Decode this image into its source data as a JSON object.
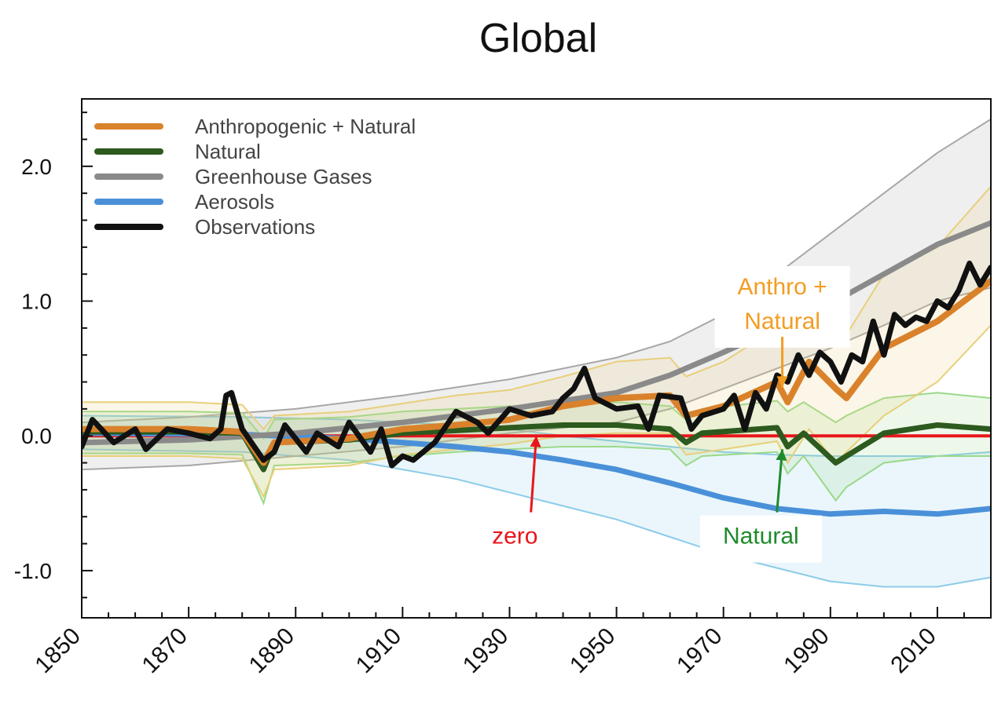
{
  "colors": {
    "anthro_natural": "#d9822b",
    "anthro_natural_band": "#e8cf7a",
    "natural": "#2d5a1e",
    "natural_band": "#9bd98a",
    "ghg": "#8a8a8a",
    "ghg_band": "#a7a7a7",
    "aerosols": "#4a90d9",
    "aerosols_band": "#8ccbe8",
    "observations": "#111111",
    "zero_line": "#e8161b",
    "annotation_anthro": "#f39c22",
    "annotation_natural": "#1f8a2b",
    "annotation_zero": "#e8161b"
  },
  "chart_data": {
    "type": "line",
    "title": "Global",
    "xlabel": "",
    "ylabel": "",
    "xlim": [
      1850,
      2020
    ],
    "ylim": [
      -1.35,
      2.5
    ],
    "x_ticks": [
      1850,
      1870,
      1890,
      1910,
      1930,
      1950,
      1970,
      1990,
      2010
    ],
    "y_ticks": [
      2.0,
      1.0,
      0.0,
      -1.0
    ],
    "y_tick_labels": [
      "2.0",
      "1.0",
      "0.0",
      "-1.0"
    ],
    "grid": false,
    "legend_position": "top-left",
    "series": [
      {
        "name": "Anthropogenic + Natural",
        "color_key": "anthro_natural",
        "x": [
          1850,
          1870,
          1880,
          1884,
          1886,
          1900,
          1910,
          1920,
          1930,
          1940,
          1950,
          1960,
          1963,
          1970,
          1980,
          1982,
          1986,
          1991,
          1993,
          2000,
          2010,
          2020
        ],
        "y": [
          0.05,
          0.05,
          0.03,
          -0.2,
          -0.05,
          -0.02,
          0.05,
          0.08,
          0.12,
          0.22,
          0.28,
          0.3,
          0.15,
          0.22,
          0.4,
          0.25,
          0.55,
          0.35,
          0.28,
          0.65,
          0.85,
          1.15
        ],
        "band_low": [
          -0.15,
          -0.15,
          -0.17,
          -0.45,
          -0.25,
          -0.22,
          -0.14,
          -0.1,
          -0.06,
          0.0,
          0.02,
          0.02,
          -0.14,
          -0.1,
          -0.04,
          -0.2,
          0.05,
          -0.2,
          -0.12,
          0.15,
          0.4,
          0.82
        ],
        "band_high": [
          0.25,
          0.25,
          0.23,
          0.05,
          0.15,
          0.18,
          0.24,
          0.3,
          0.34,
          0.44,
          0.55,
          0.58,
          0.44,
          0.55,
          0.8,
          0.68,
          1.0,
          0.85,
          0.75,
          1.2,
          1.4,
          1.85
        ]
      },
      {
        "name": "Natural",
        "color_key": "natural",
        "x": [
          1850,
          1870,
          1880,
          1884,
          1886,
          1900,
          1910,
          1920,
          1930,
          1940,
          1950,
          1960,
          1963,
          1966,
          1980,
          1982,
          1985,
          1991,
          1993,
          2000,
          2010,
          2020
        ],
        "y": [
          0.03,
          0.03,
          0.02,
          -0.25,
          -0.05,
          -0.03,
          0.02,
          0.04,
          0.06,
          0.08,
          0.08,
          0.05,
          -0.05,
          0.02,
          0.06,
          -0.08,
          0.02,
          -0.2,
          -0.15,
          0.02,
          0.08,
          0.05
        ],
        "band_low": [
          -0.13,
          -0.13,
          -0.14,
          -0.5,
          -0.22,
          -0.2,
          -0.15,
          -0.12,
          -0.1,
          -0.08,
          -0.08,
          -0.1,
          -0.22,
          -0.15,
          -0.12,
          -0.28,
          -0.15,
          -0.48,
          -0.38,
          -0.2,
          -0.15,
          -0.15
        ],
        "band_high": [
          0.18,
          0.18,
          0.17,
          -0.02,
          0.12,
          0.14,
          0.18,
          0.2,
          0.22,
          0.24,
          0.25,
          0.22,
          0.12,
          0.2,
          0.26,
          0.18,
          0.25,
          0.1,
          0.15,
          0.28,
          0.32,
          0.28
        ]
      },
      {
        "name": "Greenhouse Gases",
        "color_key": "ghg",
        "x": [
          1850,
          1870,
          1890,
          1910,
          1930,
          1950,
          1960,
          1970,
          1980,
          1990,
          2000,
          2010,
          2020
        ],
        "y": [
          -0.05,
          -0.03,
          0.02,
          0.1,
          0.2,
          0.32,
          0.45,
          0.62,
          0.8,
          0.98,
          1.2,
          1.42,
          1.58
        ],
        "band_low": [
          -0.25,
          -0.22,
          -0.15,
          -0.08,
          0.02,
          0.1,
          0.2,
          0.35,
          0.5,
          0.65,
          0.82,
          1.0,
          1.1
        ],
        "band_high": [
          0.1,
          0.14,
          0.2,
          0.3,
          0.42,
          0.58,
          0.7,
          0.9,
          1.2,
          1.5,
          1.8,
          2.1,
          2.35
        ]
      },
      {
        "name": "Aerosols",
        "color_key": "aerosols",
        "x": [
          1850,
          1880,
          1900,
          1910,
          1920,
          1930,
          1940,
          1950,
          1960,
          1970,
          1980,
          1990,
          2000,
          2010,
          2020
        ],
        "y": [
          0.02,
          0.01,
          -0.02,
          -0.05,
          -0.08,
          -0.12,
          -0.18,
          -0.25,
          -0.35,
          -0.46,
          -0.54,
          -0.58,
          -0.56,
          -0.58,
          -0.54
        ],
        "band_low": [
          -0.1,
          -0.12,
          -0.18,
          -0.25,
          -0.32,
          -0.42,
          -0.52,
          -0.62,
          -0.75,
          -0.88,
          -0.98,
          -1.08,
          -1.12,
          -1.12,
          -1.05
        ],
        "band_high": [
          0.15,
          0.14,
          0.12,
          0.1,
          0.08,
          0.05,
          0.0,
          -0.04,
          -0.08,
          -0.12,
          -0.14,
          -0.15,
          -0.15,
          -0.15,
          -0.12
        ]
      },
      {
        "name": "Observations",
        "color_key": "observations",
        "x": [
          1850,
          1852,
          1856,
          1860,
          1862,
          1866,
          1870,
          1874,
          1876,
          1877,
          1878,
          1880,
          1884,
          1886,
          1888,
          1892,
          1894,
          1898,
          1900,
          1904,
          1906,
          1908,
          1910,
          1912,
          1916,
          1920,
          1924,
          1926,
          1930,
          1934,
          1938,
          1940,
          1942,
          1944,
          1946,
          1950,
          1954,
          1956,
          1958,
          1962,
          1964,
          1966,
          1970,
          1972,
          1974,
          1976,
          1978,
          1980,
          1982,
          1984,
          1986,
          1988,
          1990,
          1992,
          1994,
          1996,
          1998,
          2000,
          2002,
          2004,
          2006,
          2008,
          2010,
          2012,
          2014,
          2016,
          2018,
          2020
        ],
        "y": [
          -0.08,
          0.12,
          -0.05,
          0.05,
          -0.1,
          0.05,
          0.02,
          -0.02,
          0.05,
          0.3,
          0.32,
          0.05,
          -0.18,
          -0.12,
          0.08,
          -0.12,
          0.02,
          -0.08,
          0.1,
          -0.12,
          0.05,
          -0.22,
          -0.15,
          -0.18,
          -0.05,
          0.18,
          0.1,
          0.02,
          0.2,
          0.15,
          0.18,
          0.28,
          0.35,
          0.5,
          0.28,
          0.2,
          0.22,
          0.05,
          0.3,
          0.28,
          0.05,
          0.15,
          0.2,
          0.3,
          0.05,
          0.32,
          0.2,
          0.45,
          0.4,
          0.6,
          0.45,
          0.62,
          0.55,
          0.4,
          0.6,
          0.55,
          0.85,
          0.6,
          0.9,
          0.82,
          0.88,
          0.85,
          1.0,
          0.95,
          1.08,
          1.28,
          1.12,
          1.25
        ]
      }
    ],
    "reference_line": {
      "label": "zero",
      "y": 0.0
    },
    "annotations": [
      {
        "text_lines": [
          "Anthro +",
          "Natural"
        ],
        "color_key": "annotation_anthro",
        "x": 1981,
        "y": 1.05,
        "arrow_to": [
          1981,
          0.36
        ]
      },
      {
        "text_lines": [
          "Natural"
        ],
        "color_key": "annotation_natural",
        "x": 1977,
        "y": -0.8,
        "arrow_to": [
          1981,
          -0.1
        ]
      },
      {
        "text_lines": [
          "zero"
        ],
        "color_key": "annotation_zero",
        "x": 1931,
        "y": -0.8,
        "arrow_to": [
          1935,
          0.0
        ]
      }
    ]
  }
}
